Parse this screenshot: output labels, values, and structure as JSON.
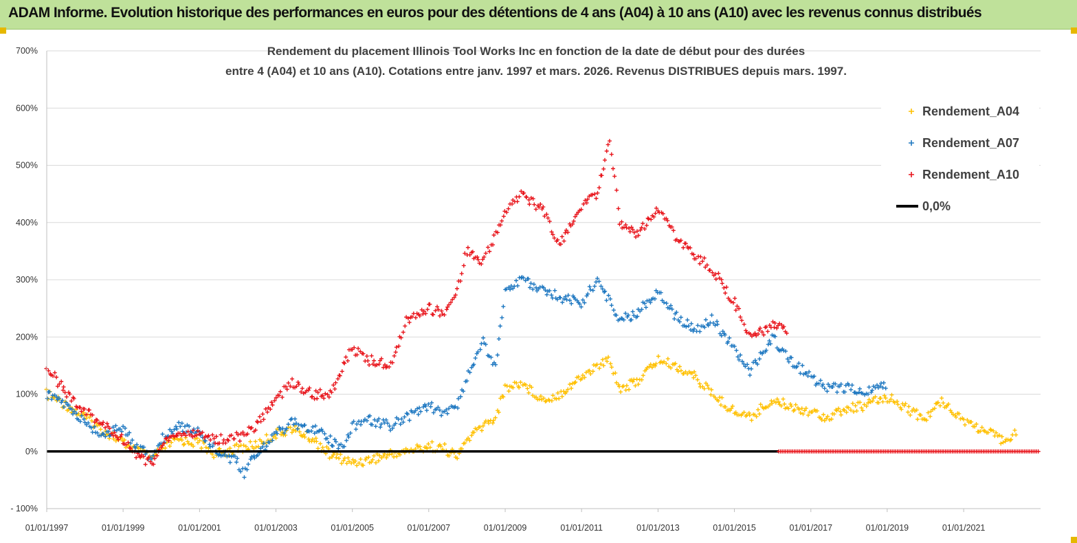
{
  "header": {
    "banner_title": "ADAM Informe. Evolution historique des performances en euros pour des détentions de 4 ans (A04) à 10 ans (A10) avec les revenus connus distribués"
  },
  "colors": {
    "banner_bg": "#bfe19a",
    "A04": "#ffc000",
    "A07": "#1f78c1",
    "A10": "#e8141b",
    "zero_line": "#000000",
    "grid": "#d9d9d9"
  },
  "chart_data": {
    "type": "scatter",
    "title_lines": [
      "Rendement du placement Illinois Tool Works Inc en fonction de la date de début pour des durées",
      "entre 4 (A04) et 10 ans (A10). Cotations entre janv. 1997 et mars. 2026. Revenus DISTRIBUES depuis mars. 1997."
    ],
    "xlabel": "",
    "ylabel": "",
    "x_range": [
      "1997-01-01",
      "2022-12-31"
    ],
    "x_tick_labels": [
      "01/01/1997",
      "01/01/1999",
      "01/01/2001",
      "01/01/2003",
      "01/01/2005",
      "01/01/2007",
      "01/01/2009",
      "01/01/2011",
      "01/01/2013",
      "01/01/2015",
      "01/01/2017",
      "01/01/2019",
      "01/01/2021"
    ],
    "y_range": [
      -100,
      700
    ],
    "y_tick_labels": [
      "- 100%",
      "0%",
      "100%",
      "200%",
      "300%",
      "400%",
      "500%",
      "600%",
      "700%"
    ],
    "y_unit": "%",
    "grid": "horizontal",
    "legend_position": "top-right",
    "series": [
      {
        "name": "Rendement_A04",
        "marker": "+",
        "color": "#ffc000",
        "points": [
          [
            "1997-01-01",
            100
          ],
          [
            "1997-06-01",
            85
          ],
          [
            "1998-01-01",
            60
          ],
          [
            "1998-06-01",
            40
          ],
          [
            "1999-01-01",
            15
          ],
          [
            "1999-06-01",
            0
          ],
          [
            "1999-10-01",
            -15
          ],
          [
            "2000-01-01",
            5
          ],
          [
            "2000-06-01",
            20
          ],
          [
            "2001-01-01",
            15
          ],
          [
            "2001-06-01",
            -5
          ],
          [
            "2002-01-01",
            5
          ],
          [
            "2002-06-01",
            10
          ],
          [
            "2003-01-01",
            30
          ],
          [
            "2003-06-01",
            40
          ],
          [
            "2004-01-01",
            20
          ],
          [
            "2004-06-01",
            -5
          ],
          [
            "2005-01-01",
            -20
          ],
          [
            "2005-06-01",
            -15
          ],
          [
            "2006-01-01",
            -5
          ],
          [
            "2006-06-01",
            0
          ],
          [
            "2007-01-01",
            10
          ],
          [
            "2007-06-01",
            5
          ],
          [
            "2007-10-01",
            -10
          ],
          [
            "2008-01-01",
            20
          ],
          [
            "2008-06-01",
            45
          ],
          [
            "2008-10-01",
            60
          ],
          [
            "2009-01-01",
            110
          ],
          [
            "2009-06-01",
            120
          ],
          [
            "2010-01-01",
            90
          ],
          [
            "2010-06-01",
            100
          ],
          [
            "2011-01-01",
            130
          ],
          [
            "2011-06-01",
            150
          ],
          [
            "2011-10-01",
            160
          ],
          [
            "2012-01-01",
            110
          ],
          [
            "2012-06-01",
            120
          ],
          [
            "2013-01-01",
            160
          ],
          [
            "2013-06-01",
            150
          ],
          [
            "2014-01-01",
            130
          ],
          [
            "2014-06-01",
            100
          ],
          [
            "2015-01-01",
            70
          ],
          [
            "2015-06-01",
            60
          ],
          [
            "2016-01-01",
            90
          ],
          [
            "2016-06-01",
            80
          ],
          [
            "2017-01-01",
            70
          ],
          [
            "2017-06-01",
            60
          ],
          [
            "2018-01-01",
            75
          ],
          [
            "2018-06-01",
            80
          ],
          [
            "2019-01-01",
            95
          ],
          [
            "2019-06-01",
            80
          ],
          [
            "2020-01-01",
            55
          ],
          [
            "2020-06-01",
            90
          ],
          [
            "2021-01-01",
            55
          ],
          [
            "2021-06-01",
            40
          ],
          [
            "2022-01-01",
            20
          ],
          [
            "2022-06-01",
            35
          ]
        ]
      },
      {
        "name": "Rendement_A07",
        "marker": "+",
        "color": "#1f78c1",
        "points": [
          [
            "1997-01-01",
            100
          ],
          [
            "1997-06-01",
            85
          ],
          [
            "1998-01-01",
            50
          ],
          [
            "1998-06-01",
            30
          ],
          [
            "1999-01-01",
            40
          ],
          [
            "1999-06-01",
            5
          ],
          [
            "1999-10-01",
            -10
          ],
          [
            "2000-01-01",
            20
          ],
          [
            "2000-06-01",
            45
          ],
          [
            "2001-01-01",
            35
          ],
          [
            "2001-06-01",
            5
          ],
          [
            "2002-01-01",
            -20
          ],
          [
            "2002-03-01",
            -40
          ],
          [
            "2002-06-01",
            -10
          ],
          [
            "2003-01-01",
            30
          ],
          [
            "2003-06-01",
            50
          ],
          [
            "2004-01-01",
            40
          ],
          [
            "2004-06-01",
            20
          ],
          [
            "2004-10-01",
            5
          ],
          [
            "2005-01-01",
            45
          ],
          [
            "2005-06-01",
            55
          ],
          [
            "2006-01-01",
            45
          ],
          [
            "2006-06-01",
            60
          ],
          [
            "2007-01-01",
            80
          ],
          [
            "2007-06-01",
            65
          ],
          [
            "2007-10-01",
            80
          ],
          [
            "2008-01-01",
            130
          ],
          [
            "2008-06-01",
            190
          ],
          [
            "2008-10-01",
            150
          ],
          [
            "2009-01-01",
            280
          ],
          [
            "2009-06-01",
            300
          ],
          [
            "2010-01-01",
            280
          ],
          [
            "2010-06-01",
            270
          ],
          [
            "2011-01-01",
            260
          ],
          [
            "2011-06-01",
            300
          ],
          [
            "2011-10-01",
            260
          ],
          [
            "2012-01-01",
            230
          ],
          [
            "2012-06-01",
            240
          ],
          [
            "2013-01-01",
            280
          ],
          [
            "2013-06-01",
            240
          ],
          [
            "2014-01-01",
            210
          ],
          [
            "2014-06-01",
            230
          ],
          [
            "2015-01-01",
            180
          ],
          [
            "2015-06-01",
            140
          ],
          [
            "2016-01-01",
            200
          ],
          [
            "2016-06-01",
            160
          ],
          [
            "2017-01-01",
            130
          ],
          [
            "2017-06-01",
            110
          ],
          [
            "2018-01-01",
            110
          ],
          [
            "2018-06-01",
            100
          ],
          [
            "2019-01-01",
            120
          ]
        ]
      },
      {
        "name": "Rendement_A10",
        "marker": "+",
        "color": "#e8141b",
        "points": [
          [
            "1997-01-01",
            150
          ],
          [
            "1997-06-01",
            110
          ],
          [
            "1998-01-01",
            70
          ],
          [
            "1998-06-01",
            50
          ],
          [
            "1999-01-01",
            20
          ],
          [
            "1999-06-01",
            -10
          ],
          [
            "1999-10-01",
            -20
          ],
          [
            "2000-01-01",
            10
          ],
          [
            "2000-06-01",
            30
          ],
          [
            "2001-01-01",
            30
          ],
          [
            "2001-06-01",
            20
          ],
          [
            "2002-01-01",
            25
          ],
          [
            "2002-06-01",
            40
          ],
          [
            "2003-01-01",
            90
          ],
          [
            "2003-06-01",
            120
          ],
          [
            "2004-01-01",
            100
          ],
          [
            "2004-06-01",
            100
          ],
          [
            "2005-01-01",
            180
          ],
          [
            "2005-06-01",
            160
          ],
          [
            "2006-01-01",
            150
          ],
          [
            "2006-06-01",
            230
          ],
          [
            "2007-01-01",
            250
          ],
          [
            "2007-06-01",
            240
          ],
          [
            "2007-10-01",
            280
          ],
          [
            "2008-01-01",
            350
          ],
          [
            "2008-06-01",
            330
          ],
          [
            "2008-10-01",
            380
          ],
          [
            "2009-01-01",
            420
          ],
          [
            "2009-06-01",
            450
          ],
          [
            "2010-01-01",
            420
          ],
          [
            "2010-06-01",
            360
          ],
          [
            "2011-01-01",
            430
          ],
          [
            "2011-06-01",
            450
          ],
          [
            "2011-10-01",
            550
          ],
          [
            "2012-01-01",
            400
          ],
          [
            "2012-06-01",
            380
          ],
          [
            "2013-01-01",
            420
          ],
          [
            "2013-06-01",
            380
          ],
          [
            "2014-01-01",
            340
          ],
          [
            "2014-06-01",
            320
          ],
          [
            "2015-01-01",
            260
          ],
          [
            "2015-06-01",
            200
          ],
          [
            "2016-01-01",
            220
          ],
          [
            "2016-06-01",
            210
          ]
        ]
      },
      {
        "name": "0,0%",
        "marker": "line",
        "color": "#000000",
        "points": [
          [
            "1997-01-01",
            0
          ],
          [
            "2016-03-01",
            0
          ]
        ]
      }
    ],
    "trailing_zero_markers": {
      "color": "#e8141b",
      "value": 0,
      "from": "2016-03-01",
      "to": "2022-12-31"
    }
  }
}
